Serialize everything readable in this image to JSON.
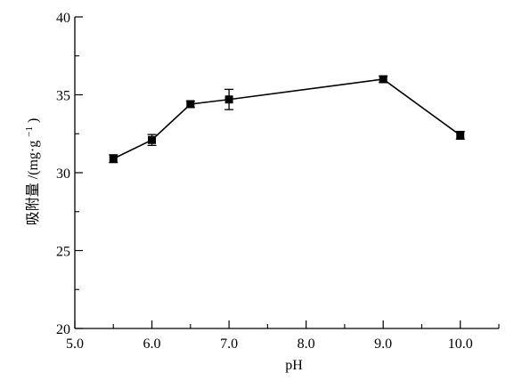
{
  "chart_data": {
    "type": "line",
    "x": [
      5.5,
      6.0,
      6.5,
      7.0,
      9.0,
      10.0
    ],
    "series": [
      {
        "values": [
          30.9,
          32.1,
          34.4,
          34.7,
          36.0,
          32.4
        ],
        "errors": [
          0.25,
          0.35,
          0.2,
          0.65,
          0.2,
          0.25
        ],
        "marker": "square",
        "color": "#000000"
      }
    ],
    "xlabel": "pH",
    "ylabel_main": "吸附量",
    "ylabel_unit_open": "/(mg·g",
    "ylabel_unit_sup": "−1",
    "ylabel_unit_close": ")",
    "xlim": [
      5.0,
      10.5
    ],
    "ylim": [
      20,
      40
    ],
    "xticks": [
      5.0,
      6.0,
      7.0,
      8.0,
      9.0,
      10.0
    ],
    "xtick_labels": [
      "5.0",
      "6.0",
      "7.0",
      "8.0",
      "9.0",
      "10.0"
    ],
    "yticks": [
      20,
      25,
      30,
      35,
      40
    ],
    "ytick_labels": [
      "20",
      "25",
      "30",
      "35",
      "40"
    ],
    "grid": false,
    "legend": false
  }
}
